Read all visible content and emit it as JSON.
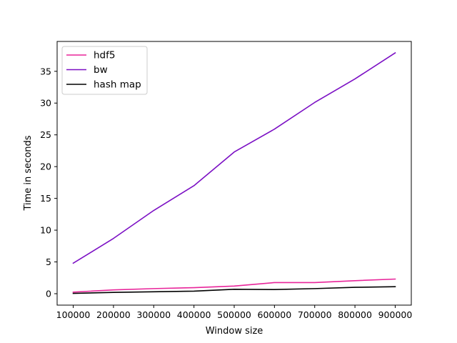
{
  "chart_data": {
    "type": "line",
    "xlabel": "Window size",
    "ylabel": "Time in seconds",
    "x": [
      100000,
      200000,
      300000,
      400000,
      500000,
      600000,
      700000,
      800000,
      900000
    ],
    "x_tick_labels": [
      "100000",
      "200000",
      "300000",
      "400000",
      "500000",
      "600000",
      "700000",
      "800000",
      "900000"
    ],
    "y_ticks": [
      0,
      5,
      10,
      15,
      20,
      25,
      30,
      35
    ],
    "y_tick_labels": [
      "0",
      "5",
      "10",
      "15",
      "20",
      "25",
      "30",
      "35"
    ],
    "xlim": [
      60000,
      940000
    ],
    "ylim": [
      -1.8,
      39.7
    ],
    "grid": false,
    "legend_position": "top-left",
    "series": [
      {
        "name": "hdf5",
        "color": "#e8259a",
        "values": [
          0.25,
          0.6,
          0.8,
          0.95,
          1.2,
          1.75,
          1.75,
          2.05,
          2.3
        ]
      },
      {
        "name": "bw",
        "color": "#7b0fc4",
        "values": [
          4.8,
          8.7,
          13.1,
          17.0,
          22.3,
          25.9,
          30.1,
          33.8,
          37.9
        ]
      },
      {
        "name": "hash map",
        "color": "#000000",
        "values": [
          0.05,
          0.2,
          0.3,
          0.4,
          0.7,
          0.65,
          0.8,
          1.0,
          1.1
        ]
      }
    ]
  }
}
